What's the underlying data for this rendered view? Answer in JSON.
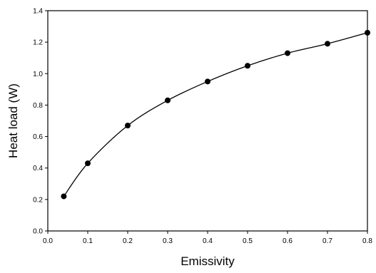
{
  "chart_data": {
    "type": "line",
    "title": "",
    "xlabel": "Emissivity",
    "ylabel": "Heat load (W)",
    "xlim": [
      0.0,
      0.8
    ],
    "ylim": [
      0.0,
      1.4
    ],
    "x_ticks": [
      "0.0",
      "0.1",
      "0.2",
      "0.3",
      "0.4",
      "0.5",
      "0.6",
      "0.7",
      "0.8"
    ],
    "y_ticks": [
      "0.0",
      "0.2",
      "0.4",
      "0.6",
      "0.8",
      "1.0",
      "1.2",
      "1.4"
    ],
    "grid": false,
    "legend": "none",
    "series": [
      {
        "marker": "filled-circle",
        "color": "#000000",
        "x": [
          0.04,
          0.1,
          0.2,
          0.3,
          0.4,
          0.5,
          0.6,
          0.7,
          0.8
        ],
        "y": [
          0.22,
          0.43,
          0.67,
          0.83,
          0.95,
          1.05,
          1.13,
          1.19,
          1.26
        ]
      }
    ]
  }
}
